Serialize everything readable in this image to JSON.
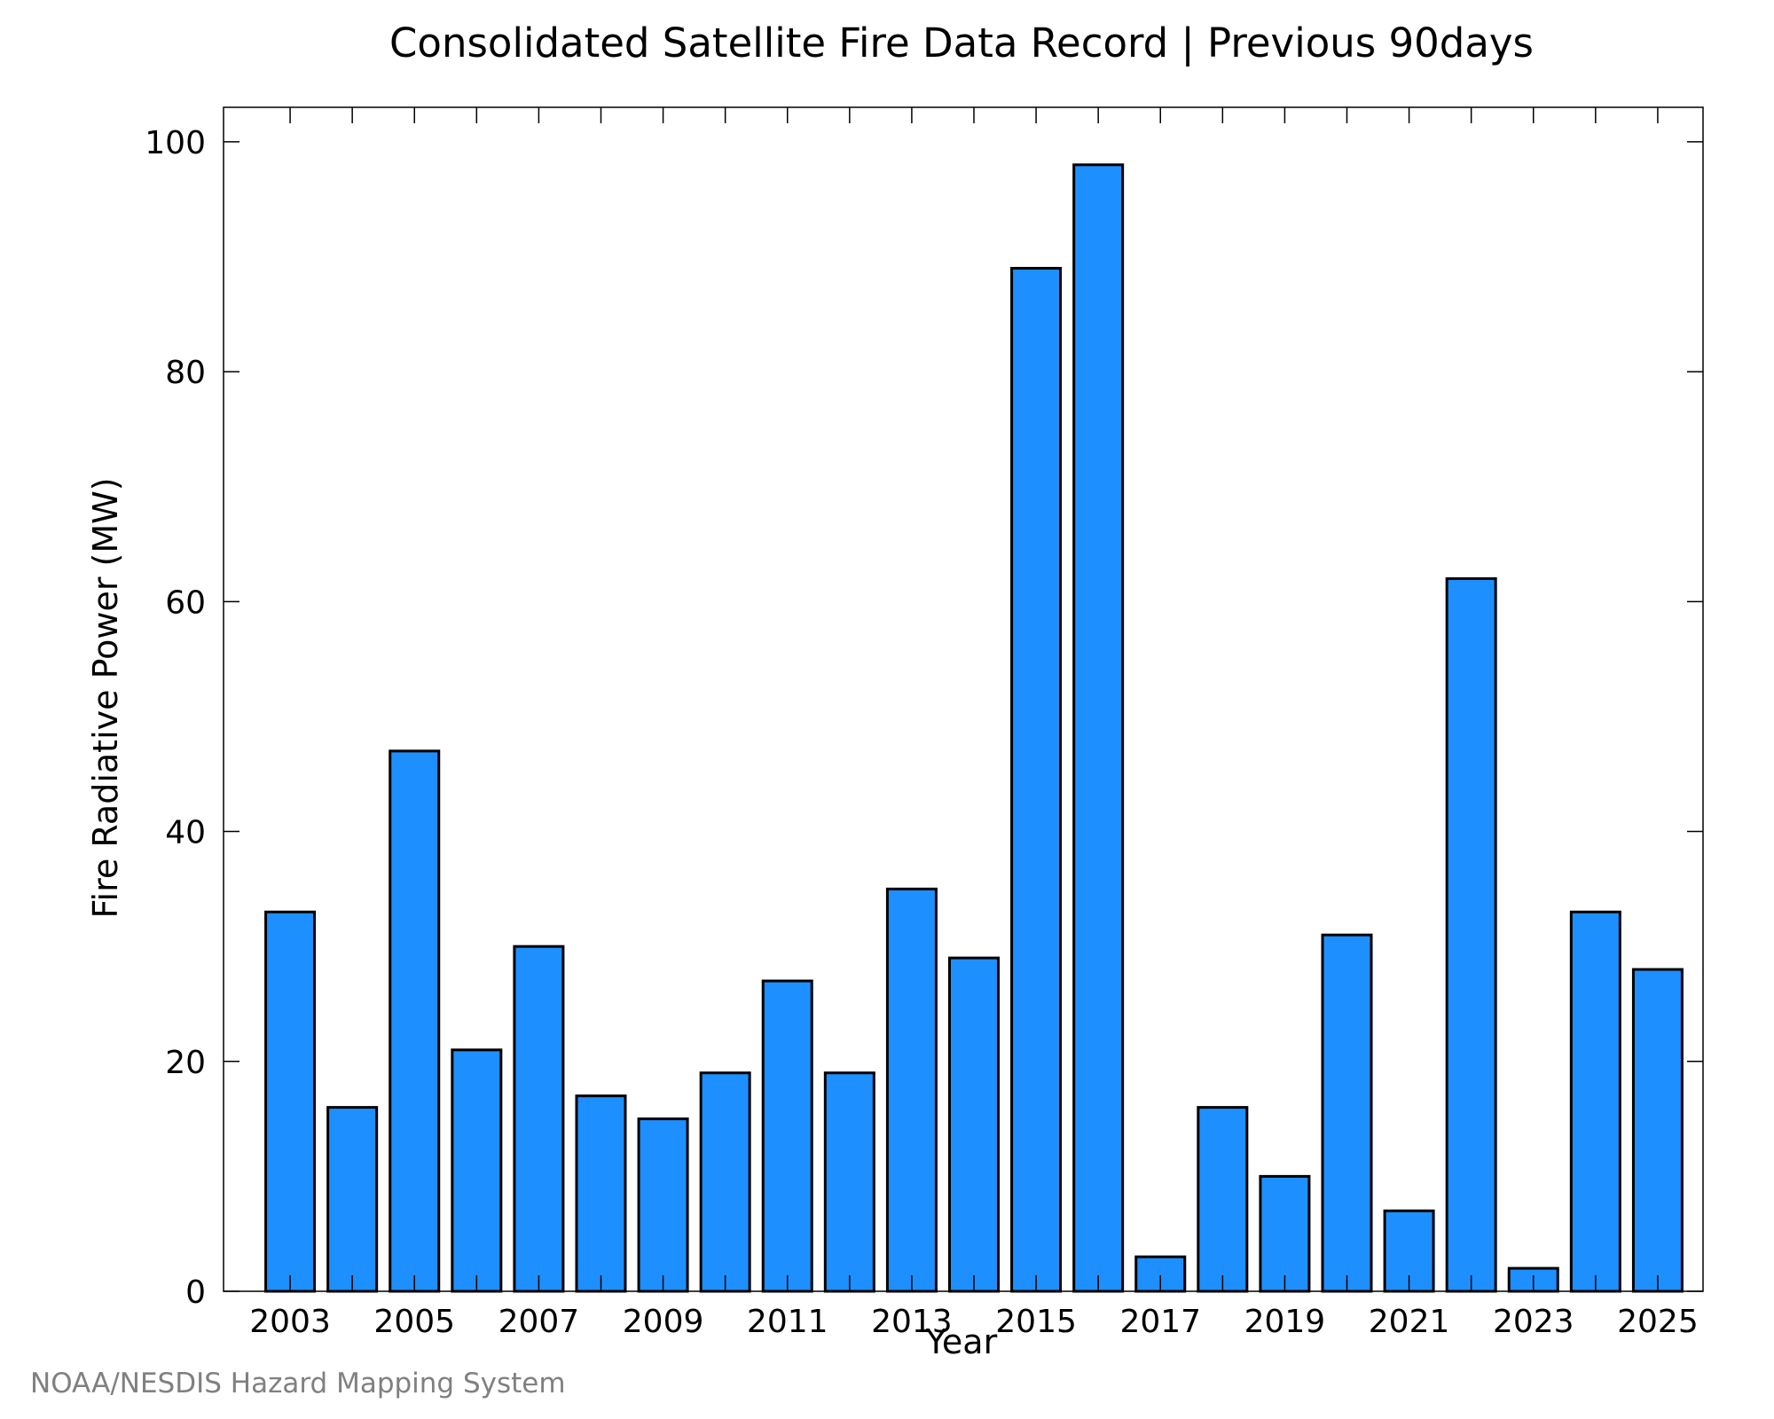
{
  "chart_data": {
    "type": "bar",
    "title": "Consolidated Satellite Fire Data Record | Previous 90days",
    "xlabel": "Year",
    "ylabel": "Fire Radiative Power (MW)",
    "categories": [
      "2003",
      "2004",
      "2005",
      "2006",
      "2007",
      "2008",
      "2009",
      "2010",
      "2011",
      "2012",
      "2013",
      "2014",
      "2015",
      "2016",
      "2017",
      "2018",
      "2019",
      "2020",
      "2021",
      "2022",
      "2023",
      "2024",
      "2025"
    ],
    "values": [
      33,
      16,
      47,
      21,
      30,
      17,
      15,
      19,
      27,
      19,
      35,
      29,
      89,
      98,
      3,
      16,
      10,
      31,
      7,
      62,
      2,
      33,
      28
    ],
    "x_tick_labels": [
      "2003",
      "2005",
      "2007",
      "2009",
      "2011",
      "2013",
      "2015",
      "2017",
      "2019",
      "2021",
      "2023",
      "2025"
    ],
    "y_ticks": [
      0,
      20,
      40,
      60,
      80,
      100
    ],
    "ylim": [
      0,
      103
    ],
    "grid": false,
    "bar_color": "#1e8fff",
    "bar_edge_color": "#000000",
    "credit": "NOAA/NESDIS Hazard Mapping System"
  }
}
